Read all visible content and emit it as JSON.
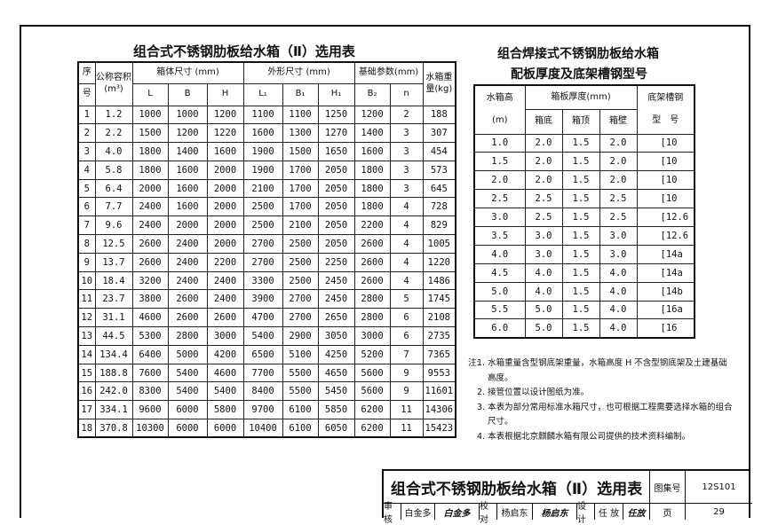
{
  "left_table": {
    "title": "组合式不锈钢肋板给水箱（Ⅱ）选用表",
    "headers": {
      "seq_top": "序",
      "seq_bottom": "号",
      "volume_top": "公称容积",
      "volume_unit": "(m³)",
      "body": "箱体尺寸 (mm)",
      "outer": "外形尺寸 (mm)",
      "base": "基础参数(mm)",
      "weight": "水箱重量(kg)",
      "sub": [
        "L",
        "B",
        "H",
        "L₁",
        "B₁",
        "H₁",
        "B₂",
        "n"
      ]
    },
    "rows": [
      [
        "1",
        "1.2",
        "1000",
        "1000",
        "1200",
        "1100",
        "1100",
        "1250",
        "1200",
        "2",
        "188"
      ],
      [
        "2",
        "2.2",
        "1500",
        "1200",
        "1220",
        "1600",
        "1300",
        "1270",
        "1400",
        "3",
        "307"
      ],
      [
        "3",
        "4.0",
        "1800",
        "1400",
        "1600",
        "1900",
        "1500",
        "1650",
        "1600",
        "3",
        "454"
      ],
      [
        "4",
        "5.8",
        "1800",
        "1600",
        "2000",
        "1900",
        "1700",
        "2050",
        "1800",
        "3",
        "573"
      ],
      [
        "5",
        "6.4",
        "2000",
        "1600",
        "2000",
        "2100",
        "1700",
        "2050",
        "1800",
        "3",
        "645"
      ],
      [
        "6",
        "7.7",
        "2400",
        "1600",
        "2000",
        "2500",
        "1700",
        "2050",
        "1800",
        "4",
        "728"
      ],
      [
        "7",
        "9.6",
        "2400",
        "2000",
        "2000",
        "2500",
        "2100",
        "2050",
        "2200",
        "4",
        "829"
      ],
      [
        "8",
        "12.5",
        "2600",
        "2400",
        "2000",
        "2700",
        "2500",
        "2050",
        "2600",
        "4",
        "1005"
      ],
      [
        "9",
        "13.7",
        "2600",
        "2400",
        "2200",
        "2700",
        "2500",
        "2250",
        "2600",
        "4",
        "1220"
      ],
      [
        "10",
        "18.4",
        "3200",
        "2400",
        "2400",
        "3300",
        "2500",
        "2450",
        "2600",
        "4",
        "1486"
      ],
      [
        "11",
        "23.7",
        "3800",
        "2600",
        "2400",
        "3900",
        "2700",
        "2450",
        "2800",
        "5",
        "1745"
      ],
      [
        "12",
        "31.1",
        "4600",
        "2600",
        "2600",
        "4700",
        "2700",
        "2650",
        "2800",
        "6",
        "2108"
      ],
      [
        "13",
        "44.5",
        "5300",
        "2800",
        "3000",
        "5400",
        "2900",
        "3050",
        "3000",
        "6",
        "2735"
      ],
      [
        "14",
        "134.4",
        "6400",
        "5000",
        "4200",
        "6500",
        "5100",
        "4250",
        "5200",
        "7",
        "7365"
      ],
      [
        "15",
        "188.8",
        "7600",
        "5400",
        "4600",
        "7700",
        "5500",
        "4650",
        "5600",
        "9",
        "9553"
      ],
      [
        "16",
        "242.0",
        "8300",
        "5400",
        "5400",
        "8400",
        "5500",
        "5450",
        "5600",
        "9",
        "11601"
      ],
      [
        "17",
        "334.1",
        "9600",
        "6000",
        "5800",
        "9700",
        "6100",
        "5850",
        "6200",
        "11",
        "14306"
      ],
      [
        "18",
        "370.8",
        "10300",
        "6000",
        "6000",
        "10400",
        "6100",
        "6050",
        "6200",
        "11",
        "15423"
      ]
    ]
  },
  "right_table": {
    "title_line1": "组合焊接式不锈钢肋板给水箱",
    "title_line2": "配板厚度及底架槽钢型号",
    "headers": {
      "height_top": "水箱高",
      "height_unit": "(m)",
      "thickness": "箱板厚度(mm)",
      "bottom": "箱底",
      "top": "箱顶",
      "wall": "箱壁",
      "channel_top": "底架槽钢",
      "channel_bottom": "型　号"
    },
    "rows": [
      [
        "1.0",
        "2.0",
        "1.5",
        "2.0",
        "[10"
      ],
      [
        "1.5",
        "2.0",
        "1.5",
        "2.0",
        "[10"
      ],
      [
        "2.0",
        "2.0",
        "1.5",
        "2.0",
        "[10"
      ],
      [
        "2.5",
        "2.5",
        "1.5",
        "2.5",
        "[10"
      ],
      [
        "3.0",
        "2.5",
        "1.5",
        "2.5",
        "[12.6"
      ],
      [
        "3.5",
        "3.0",
        "1.5",
        "3.0",
        "[12.6"
      ],
      [
        "4.0",
        "3.0",
        "1.5",
        "3.0",
        "[14a"
      ],
      [
        "4.5",
        "4.0",
        "1.5",
        "4.0",
        "[14a"
      ],
      [
        "5.0",
        "4.0",
        "1.5",
        "4.0",
        "[14b"
      ],
      [
        "5.5",
        "5.0",
        "1.5",
        "4.0",
        "[16a"
      ],
      [
        "6.0",
        "5.0",
        "1.5",
        "4.0",
        "[16"
      ]
    ]
  },
  "notes": {
    "label": "注:",
    "items": [
      "1. 水箱重量含型钢底架重量，水箱高度 H 不含型钢底架及土建基础高度。",
      "2. 接管位置以设计图纸为准。",
      "3. 本表为部分常用标准水箱尺寸，也可根据工程需要选择水箱的组合尺寸。",
      "4. 本表根据北京麒麟水箱有限公司提供的技术资料编制。"
    ]
  },
  "title_block": {
    "title": "组合式不锈钢肋板给水箱（Ⅱ）选用表",
    "atlas_label": "图集号",
    "atlas_no": "12S101",
    "review_label": "审核",
    "reviewer": "白金多",
    "reviewer_sign": "白金多",
    "check_label": "校对",
    "checker": "杨启东",
    "checker_sign": "杨启东",
    "design_label": "设计",
    "designer": "任 放",
    "designer_sign": "任放",
    "page_label": "页",
    "page_no": "29"
  }
}
